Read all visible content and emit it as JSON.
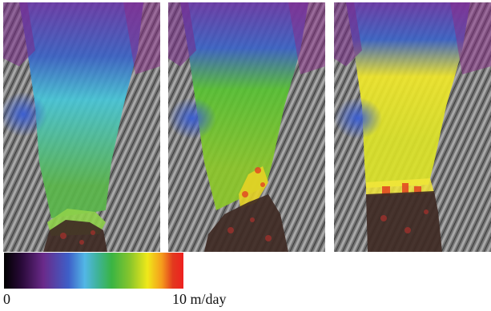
{
  "panels": [
    {
      "id": "p1",
      "flow_color": "#47c6d8",
      "front_color": "#5ab64a",
      "tip_color": "#8fd14a"
    },
    {
      "id": "p2",
      "flow_color": "#58c233",
      "front_color": "#8cc72a",
      "tip_color": "#e5d325"
    },
    {
      "id": "p3",
      "flow_color": "#f0e72a",
      "front_color": "#dbe228",
      "tip_color": "#f2e63a"
    }
  ],
  "colorbar": {
    "min_label": "0",
    "max_label": "10 m/day",
    "colors": [
      "#000000",
      "#6a2a8a",
      "#3e5fc8",
      "#52b7e6",
      "#39b443",
      "#f0e81a",
      "#ee2020"
    ]
  }
}
